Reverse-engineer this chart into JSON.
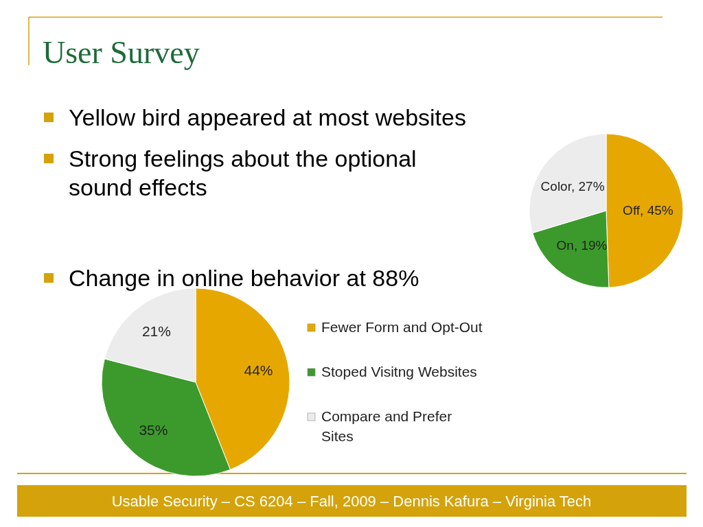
{
  "chart_data": [
    {
      "type": "other",
      "title": "User Survey",
      "annotations": [
        "Yellow bird appeared at most websites",
        "Strong feelings about the optional sound effects",
        "Change in online behavior at 88%",
        "Usable Security – CS 6204 – Fall, 2009 – Dennis Kafura – Virginia Tech"
      ]
    },
    {
      "type": "pie",
      "categories": [
        "Off",
        "On",
        "Color"
      ],
      "values": [
        45,
        19,
        27
      ],
      "value_labels": [
        "45%",
        "19%",
        "27%"
      ],
      "colors": [
        "#e6a800",
        "#3c9a2c",
        "#ececec"
      ]
    },
    {
      "type": "pie",
      "categories": [
        "Fewer Form and Opt-Out",
        "Stoped Visitng Websites",
        "Compare and Prefer Sites"
      ],
      "values": [
        44,
        35,
        21
      ],
      "value_labels": [
        "44%",
        "35%",
        "21%"
      ],
      "colors": [
        "#e6a800",
        "#3c9a2c",
        "#ececec"
      ],
      "legend": "right"
    }
  ]
}
